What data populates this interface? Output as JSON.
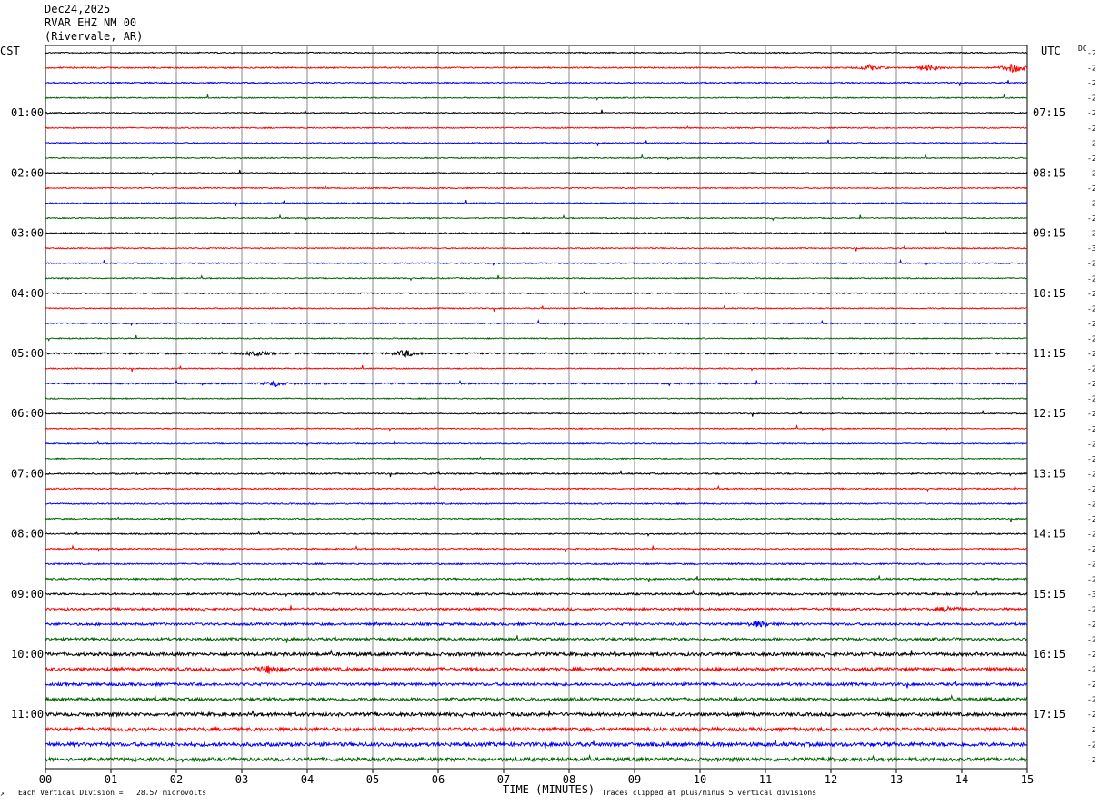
{
  "header": {
    "date": "Dec24,2025",
    "station": "RVAR EHZ NM 00",
    "location": "(Rivervale, AR)"
  },
  "left_zone": "CST",
  "right_zone": "UTC",
  "dc_label": "DC",
  "footer": {
    "vertical_division": "Each Vertical Division =   28.57 microvolts",
    "xlabel": "TIME (MINUTES)",
    "clip_note": "Traces clipped at plus/minus 5 vertical divisions"
  },
  "colors": {
    "trace_cycle": [
      "#000000",
      "#ff0000",
      "#0000ff",
      "#006400"
    ],
    "grid": "#888888"
  },
  "chart_data": {
    "type": "line",
    "title": "",
    "xlabel": "TIME (MINUTES)",
    "xlim": [
      0,
      15
    ],
    "x_ticks": [
      "00",
      "01",
      "02",
      "03",
      "04",
      "05",
      "06",
      "07",
      "08",
      "09",
      "10",
      "11",
      "12",
      "13",
      "14",
      "15"
    ],
    "trace_count": 48,
    "left_hour_labels": [
      {
        "trace": 4,
        "label": "01:00"
      },
      {
        "trace": 8,
        "label": "02:00"
      },
      {
        "trace": 12,
        "label": "03:00"
      },
      {
        "trace": 16,
        "label": "04:00"
      },
      {
        "trace": 20,
        "label": "05:00"
      },
      {
        "trace": 24,
        "label": "06:00"
      },
      {
        "trace": 28,
        "label": "07:00"
      },
      {
        "trace": 32,
        "label": "08:00"
      },
      {
        "trace": 36,
        "label": "09:00"
      },
      {
        "trace": 40,
        "label": "10:00"
      },
      {
        "trace": 44,
        "label": "11:00"
      }
    ],
    "right_hour_labels": [
      {
        "trace": 4,
        "label": "07:15"
      },
      {
        "trace": 8,
        "label": "08:15"
      },
      {
        "trace": 12,
        "label": "09:15"
      },
      {
        "trace": 16,
        "label": "10:15"
      },
      {
        "trace": 20,
        "label": "11:15"
      },
      {
        "trace": 24,
        "label": "12:15"
      },
      {
        "trace": 28,
        "label": "13:15"
      },
      {
        "trace": 32,
        "label": "14:15"
      },
      {
        "trace": 36,
        "label": "15:15"
      },
      {
        "trace": 40,
        "label": "16:15"
      },
      {
        "trace": 44,
        "label": "17:15"
      }
    ],
    "dc_offsets": [
      "-2",
      "-2",
      "-2",
      "-2",
      "-2",
      "-2",
      "-2",
      "-2",
      "-2",
      "-2",
      "-2",
      "-2",
      "-2",
      "-3",
      "-2",
      "-2",
      "-2",
      "-2",
      "-2",
      "-2",
      "-2",
      "-2",
      "-2",
      "-2",
      "-2",
      "-2",
      "-2",
      "-2",
      "-2",
      "-2",
      "-2",
      "-2",
      "-2",
      "-2",
      "-2",
      "-2",
      "-3",
      "-2",
      "-2",
      "-2",
      "-2",
      "-2",
      "-2",
      "-2",
      "-2",
      "-2",
      "-2",
      "-2"
    ],
    "trace_noise_level": [
      0.6,
      0.7,
      0.7,
      0.6,
      0.6,
      0.6,
      0.6,
      0.6,
      0.6,
      0.6,
      0.6,
      0.6,
      0.7,
      0.6,
      0.6,
      0.6,
      0.6,
      0.6,
      0.6,
      0.6,
      0.9,
      0.6,
      0.8,
      0.6,
      0.6,
      0.6,
      0.6,
      0.6,
      0.8,
      0.7,
      0.7,
      0.7,
      0.7,
      0.7,
      0.8,
      1.0,
      1.1,
      1.2,
      1.3,
      1.4,
      1.7,
      1.7,
      1.5,
      1.6,
      1.8,
      1.9,
      2.0,
      1.9
    ],
    "events": [
      {
        "trace": 1,
        "minute": 12.6,
        "amp": 3
      },
      {
        "trace": 1,
        "minute": 13.5,
        "amp": 3
      },
      {
        "trace": 1,
        "minute": 14.8,
        "amp": 6
      },
      {
        "trace": 20,
        "minute": 3.2,
        "amp": 3
      },
      {
        "trace": 20,
        "minute": 5.5,
        "amp": 4
      },
      {
        "trace": 22,
        "minute": 3.5,
        "amp": 3
      },
      {
        "trace": 38,
        "minute": 10.9,
        "amp": 3
      },
      {
        "trace": 41,
        "minute": 3.4,
        "amp": 4
      },
      {
        "trace": 37,
        "minute": 13.8,
        "amp": 3
      }
    ]
  }
}
